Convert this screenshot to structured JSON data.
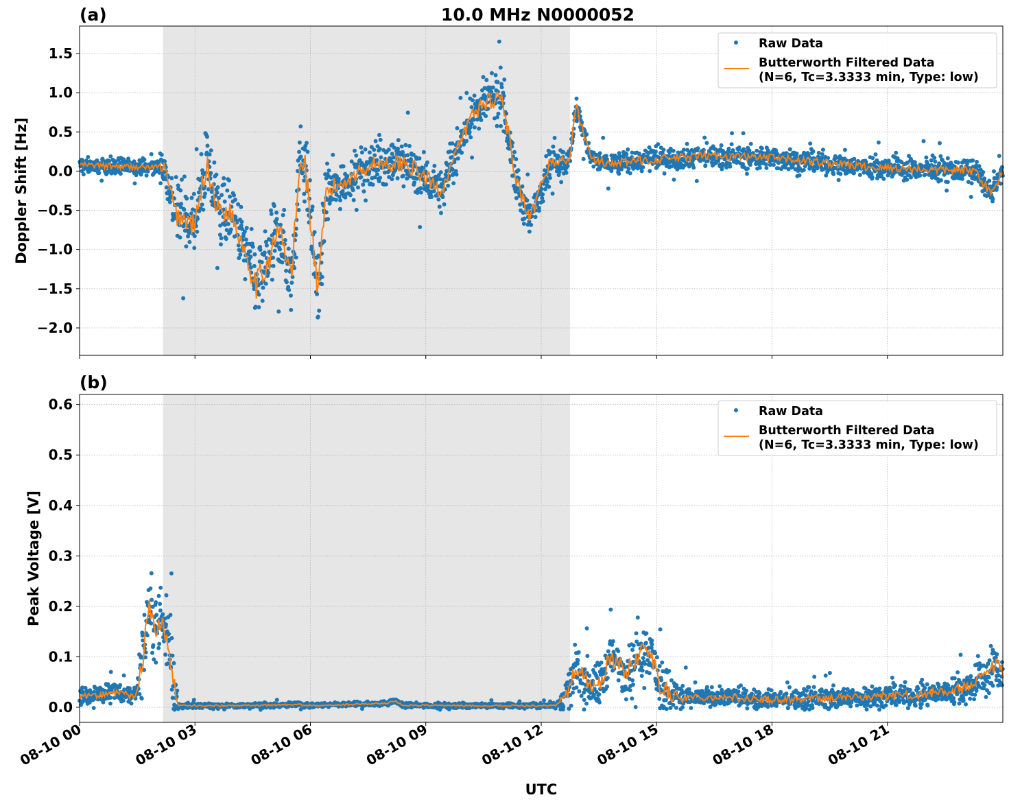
{
  "figure": {
    "title": "10.0 MHz N0000052",
    "xlabel": "UTC",
    "x_tick_labels": [
      "08-10 00",
      "08-10 03",
      "08-10 06",
      "08-10 09",
      "08-10 12",
      "08-10 15",
      "08-10 18",
      "08-10 21"
    ],
    "colors": {
      "raw": "#1f77b4",
      "filtered": "#ff7f0e",
      "shade": "#e6e6e6",
      "grid": "#b0b0b0"
    },
    "legend": {
      "raw_label": "Raw Data",
      "filtered_label_line1": "Butterworth Filtered Data",
      "filtered_label_line2": "(N=6, Tc=3.3333 min, Type: low)"
    }
  },
  "chart_data": [
    {
      "type": "scatter",
      "panel_label": "(a)",
      "ylabel": "Doppler Shift [Hz]",
      "x_unit": "hours UTC on 08-10",
      "xlim": [
        0,
        24
      ],
      "ylim": [
        -2.35,
        1.85
      ],
      "yticks": [
        -2.0,
        -1.5,
        -1.0,
        -0.5,
        0.0,
        0.5,
        1.0,
        1.5
      ],
      "ytick_labels": [
        "−2.0",
        "−1.5",
        "−1.0",
        "−0.5",
        "0.0",
        "0.5",
        "1.0",
        "1.5"
      ],
      "shaded_interval": [
        2.17,
        12.75
      ],
      "grid": true,
      "legend_position": "upper right",
      "series": [
        {
          "name": "Raw Data",
          "style": "points",
          "spread": [
            [
              0,
              0.08
            ],
            [
              2,
              0.08
            ],
            [
              2.5,
              0.35
            ],
            [
              4,
              0.35
            ],
            [
              4.5,
              0.42
            ],
            [
              6,
              0.42
            ],
            [
              7,
              0.22
            ],
            [
              9,
              0.25
            ],
            [
              10,
              0.22
            ],
            [
              11,
              0.28
            ],
            [
              11.7,
              0.22
            ],
            [
              12.8,
              0.12
            ],
            [
              24,
              0.12
            ]
          ],
          "x": [
            0,
            1.5,
            2.2,
            2.5,
            3.0,
            3.3,
            3.6,
            3.9,
            4.3,
            4.6,
            4.85,
            5.2,
            5.5,
            5.75,
            5.85,
            6.2,
            6.4,
            6.5,
            7.0,
            7.6,
            8.5,
            9.4,
            10.2,
            10.6,
            11.0,
            11.3,
            11.7,
            12.2,
            12.75,
            12.9,
            13.3,
            13.7,
            15.0,
            16.5,
            18.5,
            20.5,
            23.3,
            23.7,
            24.0
          ],
          "y": [
            0.08,
            0.05,
            0.05,
            -0.55,
            -0.7,
            0.1,
            -0.5,
            -0.5,
            -1.0,
            -1.45,
            -1.2,
            -0.75,
            -1.35,
            0.15,
            0.15,
            -1.6,
            -0.3,
            -0.25,
            -0.1,
            0.1,
            0.1,
            -0.25,
            0.72,
            0.9,
            0.95,
            -0.05,
            -0.65,
            0.1,
            0.15,
            0.85,
            0.15,
            0.1,
            0.15,
            0.2,
            0.15,
            0.05,
            0.0,
            -0.3,
            0.0
          ]
        },
        {
          "name": "Butterworth Filtered Data",
          "style": "line",
          "x": [
            0,
            1.5,
            2.2,
            2.5,
            3.0,
            3.3,
            3.6,
            3.9,
            4.3,
            4.6,
            4.85,
            5.2,
            5.5,
            5.75,
            5.85,
            6.2,
            6.4,
            6.5,
            7.0,
            7.6,
            8.5,
            9.4,
            10.2,
            10.6,
            11.0,
            11.3,
            11.7,
            12.2,
            12.75,
            12.9,
            13.3,
            13.7,
            15.0,
            16.5,
            18.5,
            20.5,
            23.3,
            23.7,
            24.0
          ],
          "y": [
            0.08,
            0.05,
            0.05,
            -0.55,
            -0.7,
            0.1,
            -0.5,
            -0.5,
            -1.0,
            -1.45,
            -1.2,
            -0.75,
            -1.35,
            0.15,
            0.15,
            -1.6,
            -0.3,
            -0.25,
            -0.1,
            0.1,
            0.1,
            -0.25,
            0.72,
            0.9,
            0.95,
            -0.05,
            -0.65,
            0.1,
            0.15,
            0.85,
            0.15,
            0.1,
            0.15,
            0.2,
            0.15,
            0.05,
            0.0,
            -0.3,
            0.0
          ]
        }
      ]
    },
    {
      "type": "scatter",
      "panel_label": "(b)",
      "ylabel": "Peak Voltage [V]",
      "x_unit": "hours UTC on 08-10",
      "xlim": [
        0,
        24
      ],
      "ylim": [
        -0.03,
        0.62
      ],
      "yticks": [
        0.0,
        0.1,
        0.2,
        0.3,
        0.4,
        0.5,
        0.6
      ],
      "ytick_labels": [
        "0.0",
        "0.1",
        "0.2",
        "0.3",
        "0.4",
        "0.5",
        "0.6"
      ],
      "shaded_interval": [
        2.17,
        12.75
      ],
      "grid": true,
      "legend_position": "upper right",
      "series": [
        {
          "name": "Raw Data",
          "style": "points",
          "spread": [
            [
              0,
              0.015
            ],
            [
              1.5,
              0.015
            ],
            [
              1.6,
              0.06
            ],
            [
              2.5,
              0.07
            ],
            [
              2.6,
              0.004
            ],
            [
              12.4,
              0.004
            ],
            [
              12.6,
              0.025
            ],
            [
              13.0,
              0.04
            ],
            [
              15.2,
              0.04
            ],
            [
              16,
              0.015
            ],
            [
              22.5,
              0.02
            ],
            [
              24,
              0.04
            ]
          ],
          "x": [
            0,
            1.0,
            1.45,
            1.55,
            1.7,
            1.8,
            1.95,
            2.1,
            2.3,
            2.45,
            2.55,
            4.0,
            5.7,
            6.0,
            8.0,
            8.2,
            8.4,
            10.0,
            12.0,
            12.4,
            12.7,
            12.9,
            13.2,
            13.5,
            13.8,
            14.2,
            14.5,
            14.8,
            15.1,
            15.5,
            16.5,
            18.0,
            20.0,
            22.0,
            23.2,
            23.5,
            23.8,
            24.0
          ],
          "y": [
            0.02,
            0.03,
            0.02,
            0.06,
            0.13,
            0.2,
            0.15,
            0.17,
            0.12,
            0.05,
            0.003,
            0.003,
            0.005,
            0.003,
            0.008,
            0.012,
            0.004,
            0.003,
            0.003,
            0.004,
            0.03,
            0.08,
            0.05,
            0.04,
            0.1,
            0.07,
            0.1,
            0.12,
            0.04,
            0.02,
            0.02,
            0.015,
            0.02,
            0.025,
            0.04,
            0.06,
            0.08,
            0.07
          ]
        },
        {
          "name": "Butterworth Filtered Data",
          "style": "line",
          "x": [
            0,
            1.0,
            1.45,
            1.55,
            1.7,
            1.8,
            1.95,
            2.1,
            2.3,
            2.45,
            2.55,
            4.0,
            5.7,
            6.0,
            8.0,
            8.2,
            8.4,
            10.0,
            12.0,
            12.4,
            12.7,
            12.9,
            13.2,
            13.5,
            13.8,
            14.2,
            14.5,
            14.8,
            15.1,
            15.5,
            16.5,
            18.0,
            20.0,
            22.0,
            23.2,
            23.5,
            23.8,
            24.0
          ],
          "y": [
            0.02,
            0.03,
            0.02,
            0.06,
            0.13,
            0.2,
            0.15,
            0.17,
            0.12,
            0.05,
            0.003,
            0.003,
            0.005,
            0.003,
            0.008,
            0.012,
            0.004,
            0.003,
            0.003,
            0.004,
            0.03,
            0.08,
            0.05,
            0.04,
            0.1,
            0.07,
            0.1,
            0.12,
            0.04,
            0.02,
            0.02,
            0.015,
            0.02,
            0.025,
            0.04,
            0.06,
            0.08,
            0.07
          ]
        }
      ]
    }
  ]
}
